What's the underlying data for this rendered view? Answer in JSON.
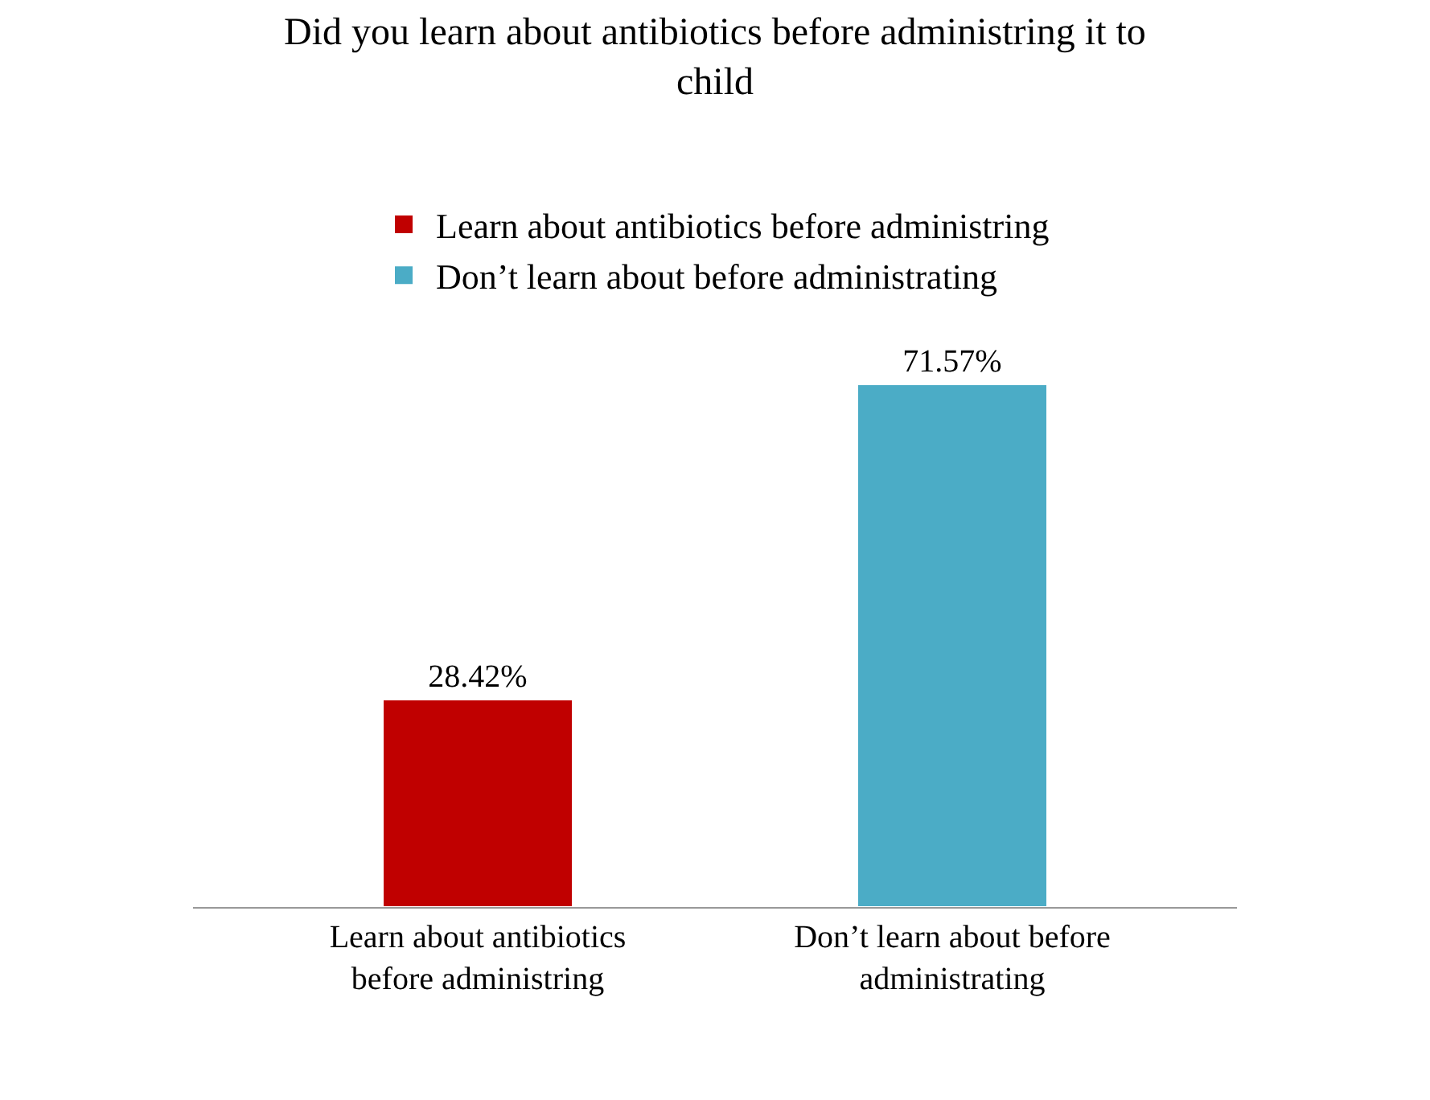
{
  "chart_data": {
    "type": "bar",
    "title": "Did you learn about antibiotics before administring it to child",
    "categories": [
      "Learn about antibiotics before administring",
      "Don’t learn about before administrating"
    ],
    "series": [
      {
        "name": "Learn about antibiotics before administring",
        "color": "#c00000",
        "values": [
          28.42,
          null
        ],
        "value_labels": [
          "28.42%",
          null
        ]
      },
      {
        "name": "Don’t learn about before administrating",
        "color": "#4bacc6",
        "values": [
          null,
          71.57
        ],
        "value_labels": [
          null,
          "71.57%"
        ]
      }
    ],
    "legend": "top"
  }
}
